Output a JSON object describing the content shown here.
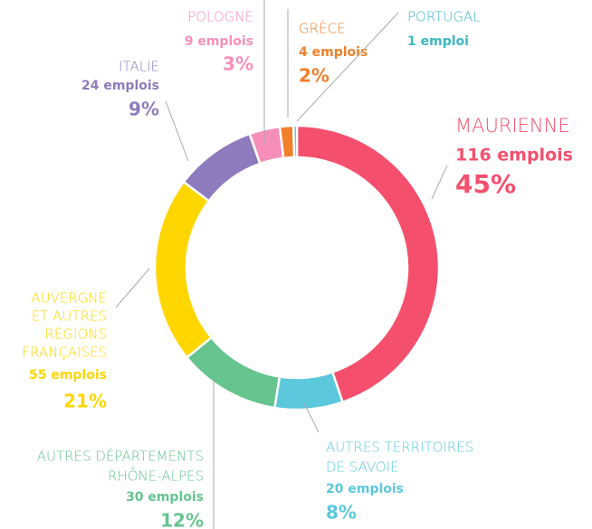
{
  "chart_data": {
    "type": "donut",
    "categories": [
      [
        "MAURIENNE"
      ],
      [
        "AUTRES TERRITOIRES",
        "DE SAVOIE"
      ],
      [
        "AUTRES DÉPARTEMENTS",
        "RHÔNE-ALPES"
      ],
      [
        "AUVERGNE",
        "ET AUTRES",
        "RÉGIONS",
        "FRANÇAISES"
      ],
      [
        "ITALIE"
      ],
      [
        "POLOGNE"
      ],
      [
        "GRÈCE"
      ],
      [
        "PORTUGAL"
      ]
    ],
    "values": [
      116,
      20,
      30,
      55,
      24,
      9,
      4,
      1
    ],
    "value_labels": [
      "116 emplois",
      "20 emplois",
      "30 emplois",
      "55 emplois",
      "24 emplois",
      "9 emplois",
      "4 emplois",
      "1 emploi"
    ],
    "percent_labels": [
      "45%",
      "8%",
      "12%",
      "21%",
      "9%",
      "3%",
      "2%",
      null
    ],
    "colors": [
      "#f4506e",
      "#5bc8dc",
      "#66c48f",
      "#ffd600",
      "#8e7bbd",
      "#f58fba",
      "#f07f28",
      "#3bb7c4"
    ]
  }
}
